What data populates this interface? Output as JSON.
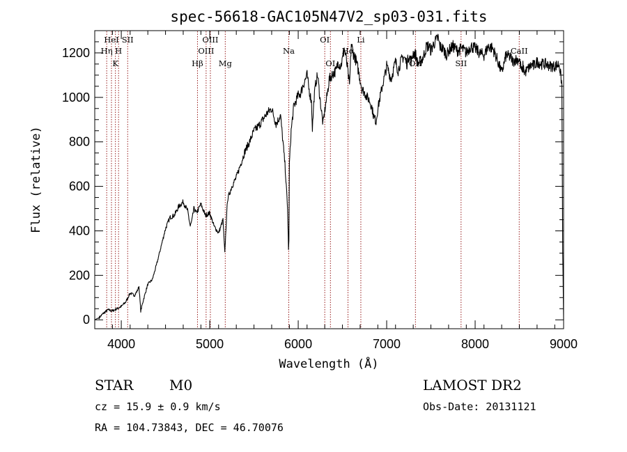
{
  "chart_data": {
    "type": "line",
    "title": "spec-56618-GAC105N47V2_sp03-031.fits",
    "xlabel": "Wavelength (Å)",
    "ylabel": "Flux (relative)",
    "xlim": [
      3700,
      9000
    ],
    "ylim": [
      -40,
      1300
    ],
    "x_ticks": [
      4000,
      5000,
      6000,
      7000,
      8000,
      9000
    ],
    "y_ticks": [
      0,
      200,
      400,
      600,
      800,
      1000,
      1200
    ],
    "grid": false,
    "line_color": "#000000",
    "marker_color": "#8b0000",
    "spectral_lines": [
      {
        "name": "Hη",
        "wavelength": 3835,
        "row": 2
      },
      {
        "name": "HeI",
        "wavelength": 3889,
        "row": 1
      },
      {
        "name": "K",
        "wavelength": 3934,
        "row": 3
      },
      {
        "name": "H",
        "wavelength": 3969,
        "row": 2
      },
      {
        "name": "SII",
        "wavelength": 4072,
        "row": 1
      },
      {
        "name": "Hβ",
        "wavelength": 4861,
        "row": 3
      },
      {
        "name": "OIII",
        "wavelength": 4959,
        "row": 2
      },
      {
        "name": "OIII",
        "wavelength": 5007,
        "row": 1
      },
      {
        "name": "Mg",
        "wavelength": 5175,
        "row": 3
      },
      {
        "name": "Na",
        "wavelength": 5893,
        "row": 2
      },
      {
        "name": "OI",
        "wavelength": 6300,
        "row": 1
      },
      {
        "name": "OI",
        "wavelength": 6364,
        "row": 3
      },
      {
        "name": "Hα",
        "wavelength": 6563,
        "row": 2
      },
      {
        "name": "Li",
        "wavelength": 6708,
        "row": 1
      },
      {
        "name": "OII",
        "wavelength": 7325,
        "row": 3
      },
      {
        "name": "SII",
        "wavelength": 7841,
        "row": 3
      },
      {
        "name": "CaII",
        "wavelength": 8498,
        "row": 2
      }
    ],
    "series": [
      {
        "x": [
          3700,
          3750,
          3800,
          3850,
          3900,
          3950,
          4000,
          4050,
          4100,
          4150,
          4180,
          4200,
          4220,
          4250,
          4300,
          4350,
          4400,
          4450,
          4500,
          4550,
          4600,
          4650,
          4700,
          4750,
          4780,
          4800,
          4820,
          4850,
          4900,
          4950,
          5000,
          5050,
          5100,
          5150,
          5170,
          5180,
          5200,
          5250,
          5300,
          5350,
          5400,
          5450,
          5500,
          5550,
          5600,
          5650,
          5700,
          5750,
          5800,
          5850,
          5880,
          5890,
          5895,
          5900,
          5920,
          5950,
          6000,
          6030,
          6050,
          6080,
          6100,
          6120,
          6150,
          6160,
          6180,
          6200,
          6220,
          6250,
          6280,
          6300,
          6330,
          6350,
          6380,
          6400,
          6430,
          6450,
          6480,
          6500,
          6520,
          6540,
          6563,
          6580,
          6600,
          6620,
          6650,
          6680,
          6700,
          6720,
          6750,
          6780,
          6800,
          6830,
          6850,
          6880,
          6900,
          6920,
          6950,
          6980,
          7000,
          7020,
          7050,
          7080,
          7100,
          7130,
          7150,
          7180,
          7200,
          7230,
          7250,
          7280,
          7300,
          7330,
          7350,
          7400,
          7430,
          7450,
          7480,
          7500,
          7530,
          7550,
          7580,
          7600,
          7630,
          7650,
          7680,
          7700,
          7750,
          7800,
          7850,
          7900,
          7950,
          8000,
          8050,
          8100,
          8150,
          8200,
          8250,
          8300,
          8350,
          8400,
          8430,
          8450,
          8500,
          8530,
          8540,
          8560,
          8600,
          8650,
          8660,
          8700,
          8750,
          8800,
          8850,
          8900,
          8950,
          8980,
          8990,
          9000
        ],
        "y": [
          0,
          10,
          30,
          45,
          40,
          50,
          60,
          80,
          120,
          110,
          130,
          150,
          40,
          90,
          160,
          180,
          250,
          330,
          410,
          460,
          470,
          510,
          530,
          490,
          420,
          450,
          500,
          480,
          520,
          470,
          480,
          420,
          390,
          450,
          300,
          380,
          540,
          600,
          640,
          700,
          760,
          800,
          850,
          870,
          900,
          930,
          950,
          880,
          920,
          700,
          500,
          320,
          350,
          700,
          850,
          960,
          1010,
          1020,
          1050,
          1080,
          1100,
          1040,
          980,
          860,
          1000,
          1070,
          1100,
          980,
          880,
          940,
          1020,
          1080,
          1100,
          1110,
          1120,
          1160,
          1140,
          1170,
          1220,
          1180,
          1110,
          1050,
          1240,
          1200,
          1170,
          1120,
          1080,
          1040,
          1020,
          1000,
          990,
          960,
          920,
          890,
          950,
          990,
          1050,
          1100,
          1140,
          1120,
          1080,
          1130,
          1160,
          1120,
          1150,
          1180,
          1180,
          1150,
          1190,
          1160,
          1200,
          1190,
          1150,
          1170,
          1200,
          1230,
          1230,
          1210,
          1240,
          1250,
          1270,
          1230,
          1220,
          1210,
          1190,
          1210,
          1230,
          1210,
          1220,
          1200,
          1230,
          1220,
          1200,
          1190,
          1230,
          1220,
          1170,
          1110,
          1190,
          1180,
          1160,
          1170,
          1170,
          1110,
          1140,
          1110,
          1130,
          1150,
          1140,
          1160,
          1150,
          1150,
          1140,
          1140,
          1150,
          1060,
          300,
          0
        ]
      }
    ]
  },
  "info": {
    "object_type": "STAR",
    "subclass": "M0",
    "redshift_text": "cz = 15.9 ± 0.9 km/s",
    "coords_text": "RA = 104.73843, DEC =  46.70076",
    "survey": "LAMOST DR2",
    "obs_date_text": "Obs-Date: 20131121"
  }
}
